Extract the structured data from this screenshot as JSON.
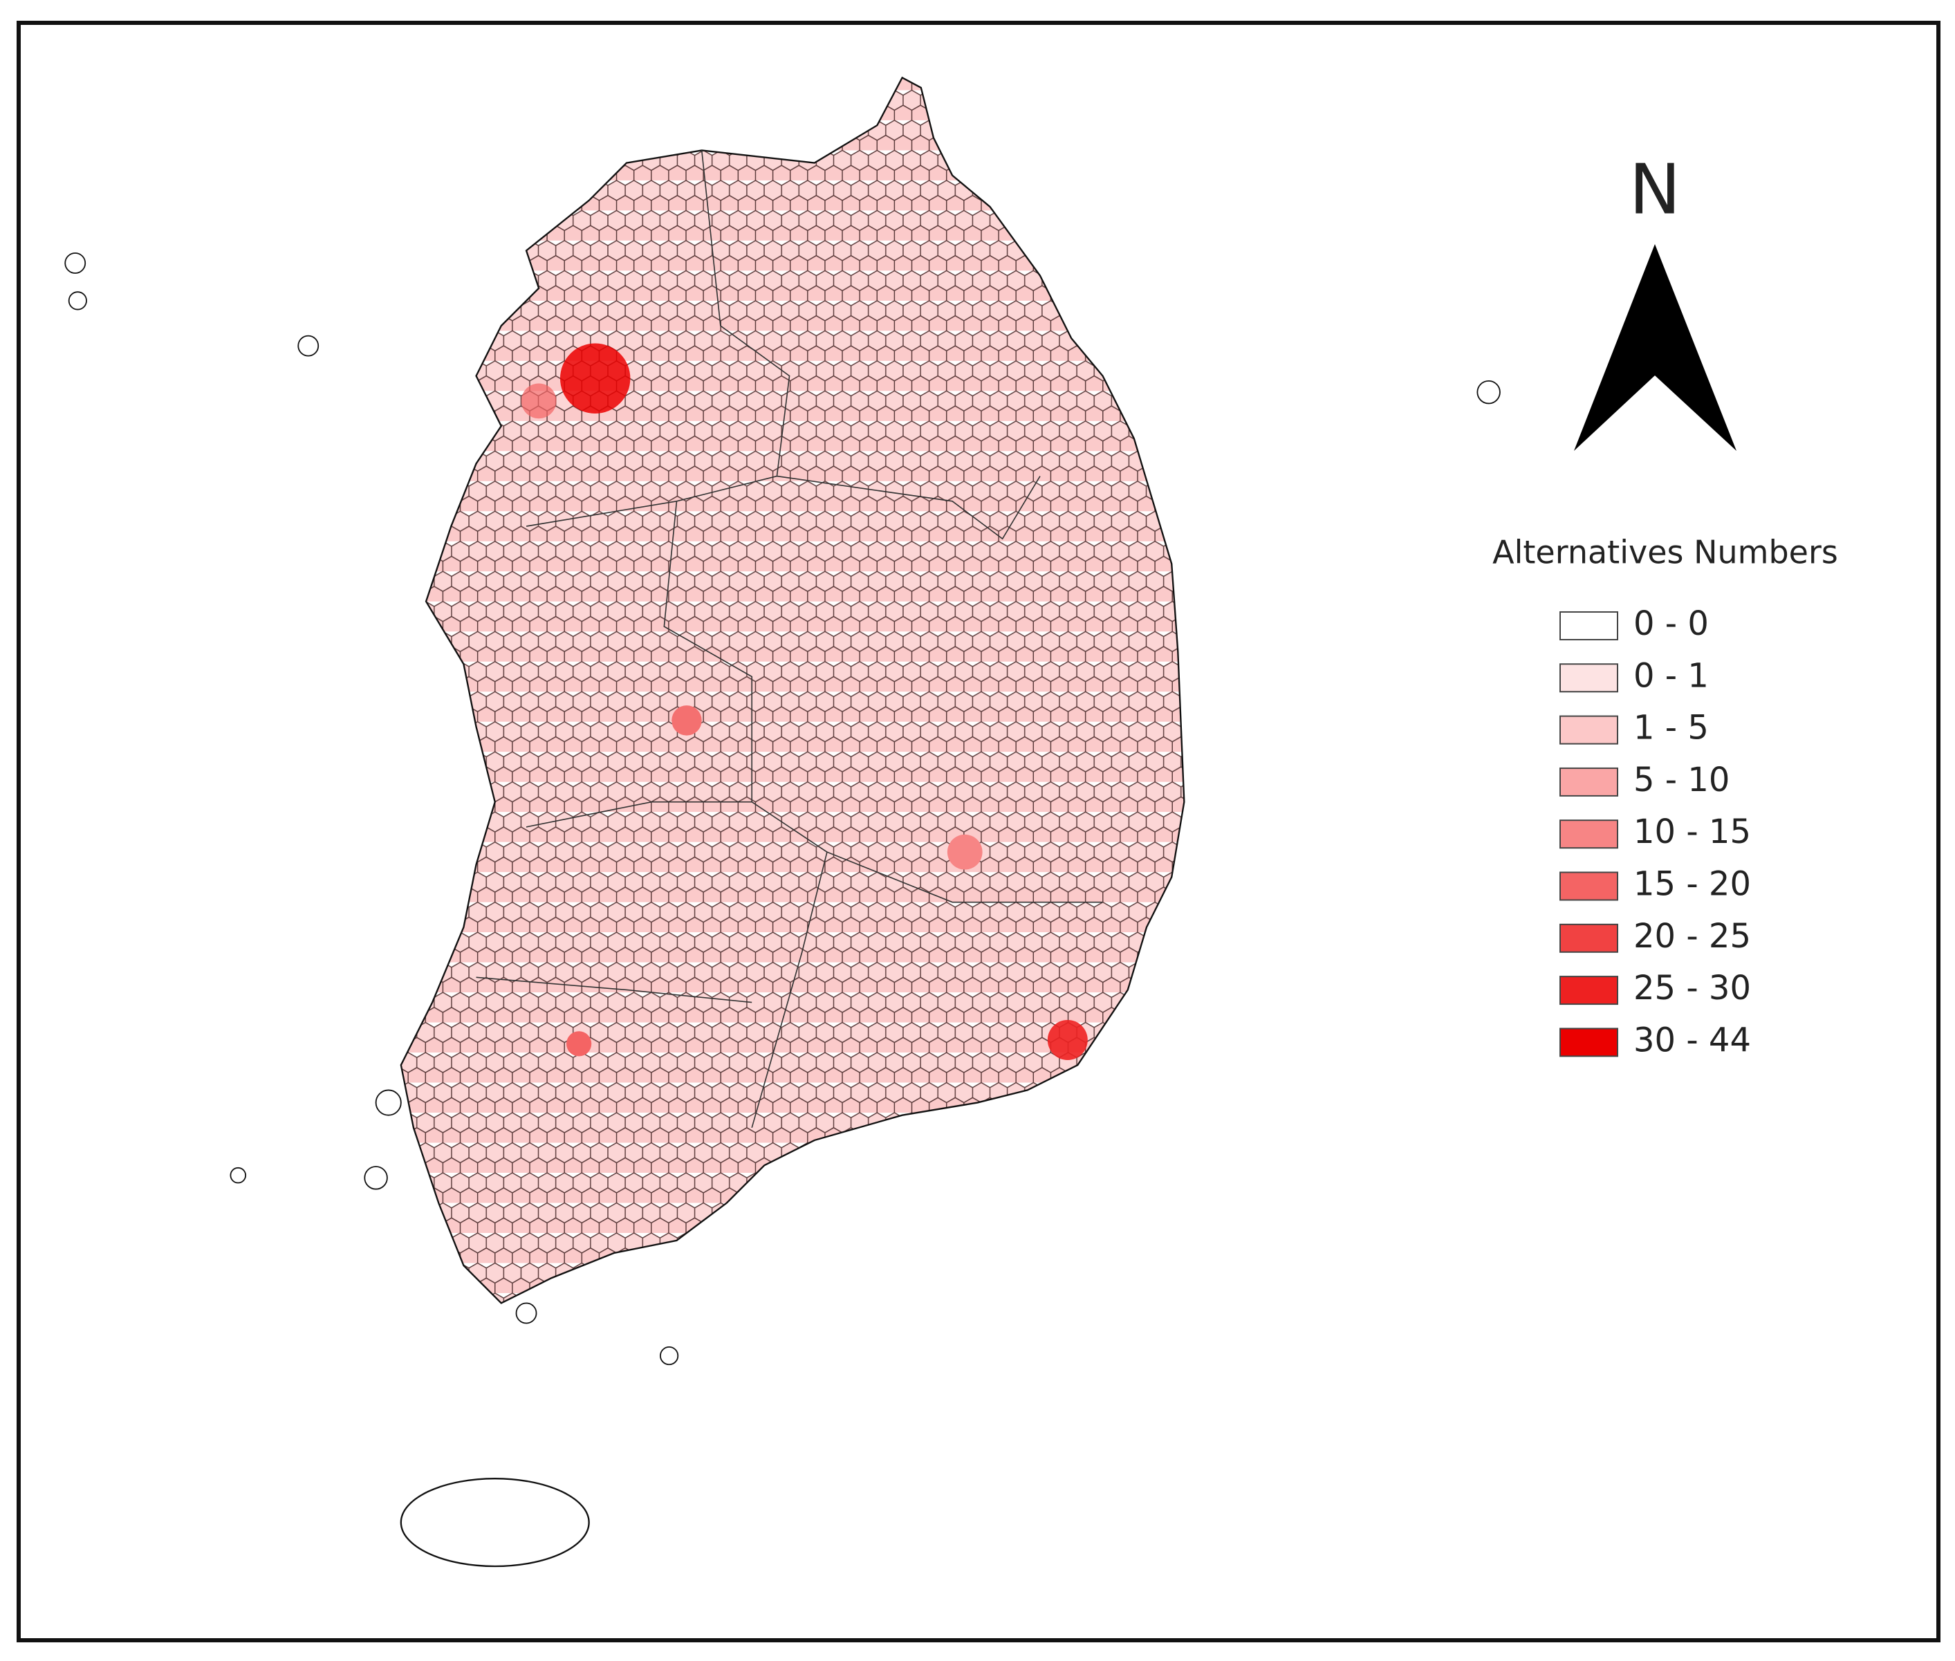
{
  "north_arrow": {
    "label": "N"
  },
  "legend": {
    "title": "Alternatives Numbers",
    "items": [
      {
        "label": "0 - 0",
        "color": "#ffffff"
      },
      {
        "label": "0 - 1",
        "color": "#fde3e3"
      },
      {
        "label": "1 - 5",
        "color": "#fcc8c8"
      },
      {
        "label": "5 - 10",
        "color": "#faa6a6"
      },
      {
        "label": "10 - 15",
        "color": "#f78585"
      },
      {
        "label": "15 - 20",
        "color": "#f46464"
      },
      {
        "label": "20 - 25",
        "color": "#f14242"
      },
      {
        "label": "25 - 30",
        "color": "#ee2121"
      },
      {
        "label": "30 - 44",
        "color": "#eb0000"
      }
    ]
  }
}
